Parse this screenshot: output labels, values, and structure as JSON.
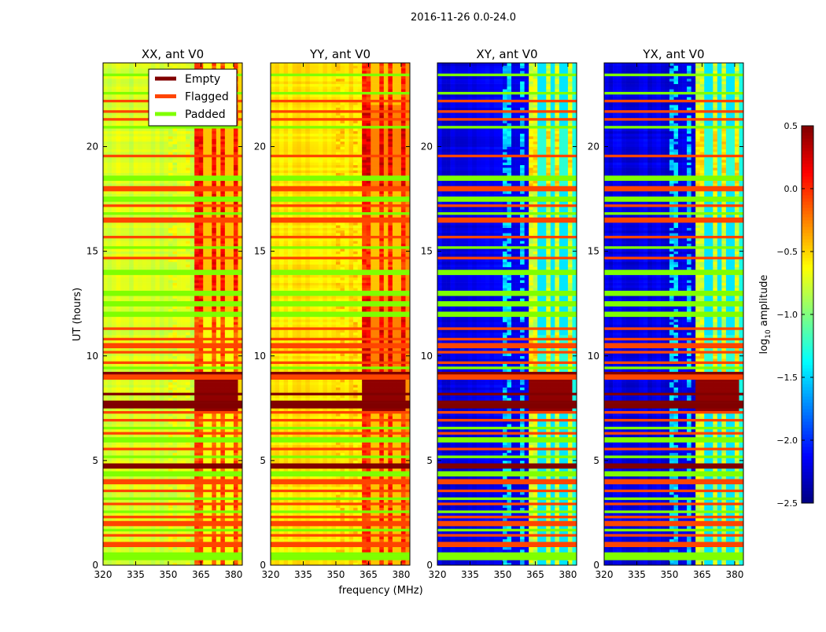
{
  "chart_data": {
    "type": "heatmap",
    "title": "2016-11-26 0.0-24.0",
    "xlabel": "frequency (MHz)",
    "ylabel": "UT (hours)",
    "xlim": [
      320,
      384
    ],
    "ylim": [
      0,
      24
    ],
    "xticks": [
      "320",
      "335",
      "350",
      "365",
      "380"
    ],
    "yticks": [
      "0",
      "5",
      "10",
      "15",
      "20"
    ],
    "colorbar": {
      "label_main": "log",
      "label_sub": "10",
      "label_rest": " amplitude",
      "colormap": "jet",
      "range": [
        -2.5,
        0.5
      ],
      "ticks": [
        "0.5",
        "0.0",
        "−0.5",
        "−1.0",
        "−1.5",
        "−2.0",
        "−2.5"
      ]
    },
    "legend": {
      "placement": "top-right of first panel",
      "entries": [
        {
          "label": "Empty",
          "color": "#800000"
        },
        {
          "label": "Flagged",
          "color": "#ff4500"
        },
        {
          "label": "Padded",
          "color": "#7fff00"
        }
      ]
    },
    "panels": [
      {
        "title": "XX, ant V0",
        "base": -0.75,
        "band": -0.1,
        "mid": -0.7,
        "band_peak_hours": [
          [
            17,
            22
          ],
          [
            12,
            17
          ]
        ]
      },
      {
        "title": "YY, ant V0",
        "base": -0.55,
        "band": 0.0,
        "mid": -0.5,
        "band_peak_hours": [
          [
            18,
            22
          ],
          [
            8,
            13
          ]
        ]
      },
      {
        "title": "XY, ant V0",
        "base": -2.2,
        "band": -0.75,
        "mid": -1.5,
        "band_peak_hours": [
          [
            18,
            21
          ],
          [
            9,
            11
          ]
        ]
      },
      {
        "title": "YX, ant V0",
        "base": -2.2,
        "band": -0.75,
        "mid": -1.5,
        "band_peak_hours": [
          [
            18,
            21
          ],
          [
            9,
            11
          ]
        ]
      }
    ],
    "band_mhz": [
      362,
      382
    ],
    "band_gaps_mhz": [
      368,
      373,
      378
    ],
    "mid_stripes_mhz": [
      351,
      353,
      356,
      359
    ],
    "flagged_hours": [
      0.9,
      1.1,
      1.4,
      2.0,
      2.3,
      2.9,
      3.6,
      4.0,
      5.6,
      6.3,
      6.9,
      7.3,
      9.0,
      9.7,
      10.2,
      10.5,
      10.8,
      11.3,
      14.7,
      15.7,
      16.5,
      17.2,
      18.0,
      19.6,
      21.3,
      21.7,
      22.2
    ],
    "padded_hours": [
      0.3,
      0.5,
      1.7,
      2.6,
      3.2,
      3.9,
      4.3,
      4.4,
      5.2,
      6.0,
      6.6,
      9.4,
      11.9,
      12.1,
      12.5,
      13.0,
      14.0,
      15.2,
      16.8,
      17.5,
      18.5,
      20.9,
      22.6,
      23.4
    ],
    "empty_hours": [
      4.75,
      7.6,
      7.7,
      7.8,
      8.2,
      9.2
    ]
  }
}
